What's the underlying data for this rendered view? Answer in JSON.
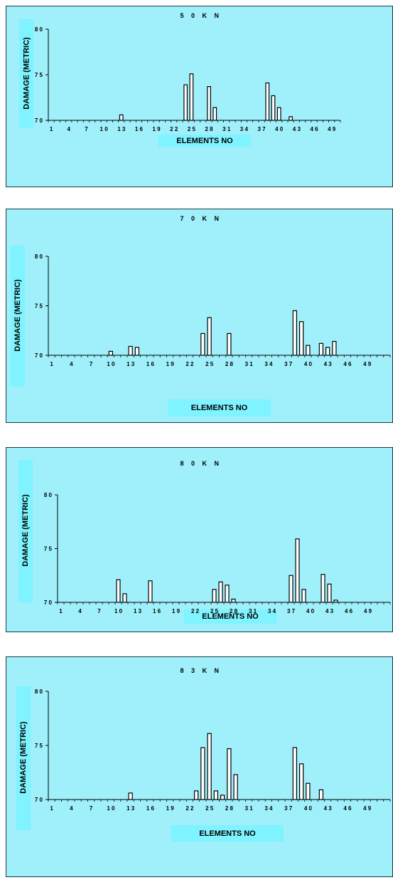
{
  "chart_data": [
    {
      "type": "bar",
      "title": "5 0 K N",
      "xlabel": "ELEMENTS NO",
      "ylabel": "DAMAGE (METRIC)",
      "ylim": [
        70,
        80
      ],
      "yticks": [
        "8 0",
        "7 5",
        "7 0"
      ],
      "ytick_values": [
        80,
        75,
        70
      ],
      "x_tick_labels": [
        "1",
        "4",
        "7",
        "1 0",
        "1 3",
        "1 6",
        "1 9",
        "2 2",
        "2 5",
        "2 8",
        "3 1",
        "3 4",
        "3 7",
        "4 0",
        "4 3",
        "4 6",
        "4 9"
      ],
      "x_tick_elements": [
        1,
        4,
        7,
        10,
        13,
        16,
        19,
        22,
        25,
        28,
        31,
        34,
        37,
        40,
        43,
        46,
        49
      ],
      "x_count": 50,
      "bars": [
        {
          "x": 13,
          "y": 70.6
        },
        {
          "x": 24,
          "y": 73.9
        },
        {
          "x": 25,
          "y": 75.1
        },
        {
          "x": 28,
          "y": 73.7
        },
        {
          "x": 29,
          "y": 71.4
        },
        {
          "x": 38,
          "y": 74.1
        },
        {
          "x": 39,
          "y": 72.7
        },
        {
          "x": 40,
          "y": 71.4
        },
        {
          "x": 42,
          "y": 70.4
        }
      ]
    },
    {
      "type": "bar",
      "title": "7 0 K N",
      "xlabel": "ELEMENTS NO",
      "ylabel": "DAMAGE (METRIC)",
      "ylim": [
        70,
        80
      ],
      "yticks": [
        "8 0",
        "7 5",
        "7 0"
      ],
      "ytick_values": [
        80,
        75,
        70
      ],
      "x_tick_labels": [
        "1",
        "4",
        "7",
        "1 0",
        "1 3",
        "1 6",
        "1 9",
        "2 2",
        "2 5",
        "2 8",
        "3 1",
        "3 4",
        "3 7",
        "4 0",
        "4 3",
        "4 6",
        "4 9"
      ],
      "x_tick_elements": [
        1,
        4,
        7,
        10,
        13,
        16,
        19,
        22,
        25,
        28,
        31,
        34,
        37,
        40,
        43,
        46,
        49
      ],
      "x_count": 52,
      "bars": [
        {
          "x": 10,
          "y": 70.4
        },
        {
          "x": 13,
          "y": 70.9
        },
        {
          "x": 14,
          "y": 70.8
        },
        {
          "x": 24,
          "y": 72.2
        },
        {
          "x": 25,
          "y": 73.8
        },
        {
          "x": 28,
          "y": 72.2
        },
        {
          "x": 38,
          "y": 74.5
        },
        {
          "x": 39,
          "y": 73.4
        },
        {
          "x": 40,
          "y": 71.0
        },
        {
          "x": 42,
          "y": 71.2
        },
        {
          "x": 43,
          "y": 70.8
        },
        {
          "x": 44,
          "y": 71.4
        }
      ]
    },
    {
      "type": "bar",
      "title": "8 0 K N",
      "xlabel": "ELEMENTS NO",
      "ylabel": "DAMAGE (METRIC)",
      "ylim": [
        70,
        80
      ],
      "yticks": [
        "8 0",
        "7 5",
        "7 0"
      ],
      "ytick_values": [
        80,
        75,
        70
      ],
      "x_tick_labels": [
        "1",
        "4",
        "7",
        "1 0",
        "1 3",
        "1 6",
        "1 9",
        "2 2",
        "2 5",
        "2 8",
        "3 1",
        "3 4",
        "3 7",
        "4 0",
        "4 3",
        "4 6",
        "4 9"
      ],
      "x_tick_elements": [
        1,
        4,
        7,
        10,
        13,
        16,
        19,
        22,
        25,
        28,
        31,
        34,
        37,
        40,
        43,
        46,
        49
      ],
      "x_count": 52,
      "bars": [
        {
          "x": 10,
          "y": 72.1
        },
        {
          "x": 11,
          "y": 70.8
        },
        {
          "x": 15,
          "y": 72.0
        },
        {
          "x": 25,
          "y": 71.2
        },
        {
          "x": 26,
          "y": 71.9
        },
        {
          "x": 27,
          "y": 71.6
        },
        {
          "x": 28,
          "y": 70.3
        },
        {
          "x": 37,
          "y": 72.5
        },
        {
          "x": 38,
          "y": 75.9
        },
        {
          "x": 39,
          "y": 71.2
        },
        {
          "x": 42,
          "y": 72.6
        },
        {
          "x": 43,
          "y": 71.7
        },
        {
          "x": 44,
          "y": 70.2
        }
      ]
    },
    {
      "type": "bar",
      "title": "8 3 K N",
      "xlabel": "ELEMENTS NO",
      "ylabel": "DAMAGE (METRIC)",
      "ylim": [
        70,
        80
      ],
      "yticks": [
        "8 0",
        "7 5",
        "7 0"
      ],
      "ytick_values": [
        80,
        75,
        70
      ],
      "x_tick_labels": [
        "1",
        "4",
        "7",
        "1 0",
        "1 3",
        "1 6",
        "1 9",
        "2 2",
        "2 5",
        "2 8",
        "3 1",
        "3 4",
        "3 7",
        "4 0",
        "4 3",
        "4 6",
        "4 9"
      ],
      "x_tick_elements": [
        1,
        4,
        7,
        10,
        13,
        16,
        19,
        22,
        25,
        28,
        31,
        34,
        37,
        40,
        43,
        46,
        49
      ],
      "x_count": 52,
      "bars": [
        {
          "x": 13,
          "y": 70.6
        },
        {
          "x": 23,
          "y": 70.8
        },
        {
          "x": 24,
          "y": 74.8
        },
        {
          "x": 25,
          "y": 76.1
        },
        {
          "x": 26,
          "y": 70.8
        },
        {
          "x": 27,
          "y": 70.4
        },
        {
          "x": 28,
          "y": 74.7
        },
        {
          "x": 29,
          "y": 72.3
        },
        {
          "x": 38,
          "y": 74.8
        },
        {
          "x": 39,
          "y": 73.3
        },
        {
          "x": 40,
          "y": 71.5
        },
        {
          "x": 42,
          "y": 70.9
        }
      ]
    }
  ],
  "colors": {
    "panel_bg": "#9ff0fb",
    "label_bg": "#7ff3ff",
    "border": "#1a3a44",
    "bar_fill": "#ffffff",
    "bar_stroke": "#000000"
  }
}
